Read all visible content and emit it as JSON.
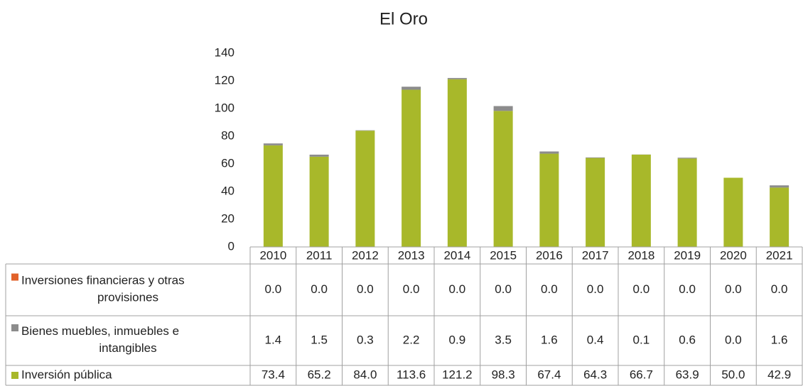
{
  "chart_data": {
    "type": "bar",
    "stacked": true,
    "title": "El Oro",
    "categories": [
      "2010",
      "2011",
      "2012",
      "2013",
      "2014",
      "2015",
      "2016",
      "2017",
      "2018",
      "2019",
      "2020",
      "2021"
    ],
    "series": [
      {
        "name": "Inversiones financieras y otras provisiones",
        "color": "#e2622a",
        "values": [
          0,
          0,
          0,
          0,
          0,
          0,
          0,
          0,
          0,
          0,
          0,
          0
        ],
        "value_labels": [
          "0.0",
          "0.0",
          "0.0",
          "0.0",
          "0.0",
          "0.0",
          "0.0",
          "0.0",
          "0.0",
          "0.0",
          "0.0",
          "0.0"
        ]
      },
      {
        "name": "Bienes muebles, inmuebles e intangibles",
        "color": "#8c8c8c",
        "values": [
          1.4,
          1.5,
          0.3,
          2.2,
          0.9,
          3.5,
          1.6,
          0.4,
          0.1,
          0.6,
          0,
          1.6
        ],
        "value_labels": [
          "1.4",
          "1.5",
          "0.3",
          "2.2",
          "0.9",
          "3.5",
          "1.6",
          "0.4",
          "0.1",
          "0.6",
          "0.0",
          "1.6"
        ]
      },
      {
        "name": "Inversión pública",
        "color": "#a8b82a",
        "values": [
          73.4,
          65.2,
          84,
          113.6,
          121.2,
          98.3,
          67.4,
          64.3,
          66.7,
          63.9,
          50,
          42.9
        ],
        "value_labels": [
          "73.4",
          "65.2",
          "84.0",
          "113.6",
          "121.2",
          "98.3",
          "67.4",
          "64.3",
          "66.7",
          "63.9",
          "50.0",
          "42.9"
        ]
      }
    ],
    "ylim": [
      0,
      140
    ],
    "yticks": [
      0,
      20,
      40,
      60,
      80,
      100,
      120,
      140
    ],
    "grid": false
  }
}
